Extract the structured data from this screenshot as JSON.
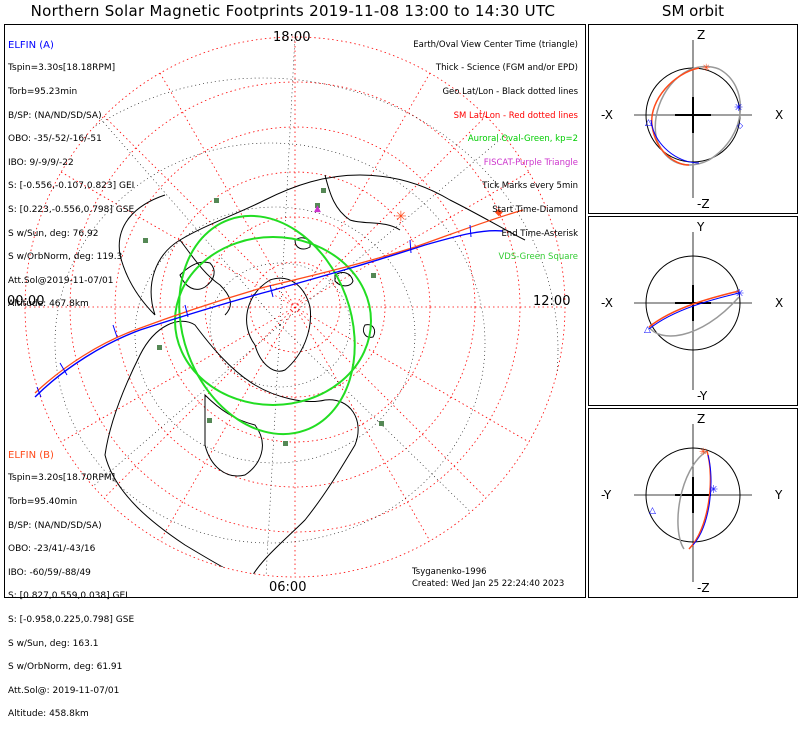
{
  "title": "Northern Solar Magnetic Footprints 2019-11-08 13:00 to 14:30 UTC",
  "side_title": "SM orbit",
  "map": {
    "mlt_labels": [
      "18:00",
      "00:00",
      "12:00",
      "06:00"
    ]
  },
  "elfin_a": {
    "header": "ELFIN (A)",
    "color": "#0000ff",
    "lines": [
      "Tspin=3.30s[18.18RPM]",
      "Torb=95.23min",
      "B/SP: (NA/ND/SD/SA)",
      "OBO: -35/-52/-16/-51",
      "IBO: 9/-9/9/-22",
      "S: [-0.556,-0.107,0.823] GEI",
      "S: [0.223,-0.556,0.798] GSE",
      "S w/Sun, deg: 76.92",
      "S w/OrbNorm, deg: 119.3",
      "Att.Sol@2019-11-07/01",
      "Altitude: 467.8km"
    ]
  },
  "elfin_b": {
    "header": "ELFIN (B)",
    "color": "#ff4a1a",
    "lines": [
      "Tspin=3.20s[18.70RPM]",
      "Torb=95.40min",
      "B/SP: (NA/ND/SD/SA)",
      "OBO: -23/41/-43/16",
      "IBO: -60/59/-88/49",
      "S: [0.827,0.559,0.038] GEI",
      "S: [-0.958,0.225,0.798] GSE",
      "S w/Sun, deg: 163.1",
      "S w/OrbNorm, deg: 61.91",
      "Att.Sol@: 2019-11-07/01",
      "Altitude: 458.8km"
    ]
  },
  "legend": [
    {
      "text": "Earth/Oval View Center Time (triangle)",
      "color": "#000000"
    },
    {
      "text": "Thick - Science (FGM and/or EPD)",
      "color": "#000000"
    },
    {
      "text": "Geo Lat/Lon - Black dotted lines",
      "color": "#000000"
    },
    {
      "text": "SM Lat/Lon - Red dotted lines",
      "color": "#ff0000"
    },
    {
      "text": "Auroral Oval-Green, kp=2",
      "color": "#00cc00"
    },
    {
      "text": "FISCAT-Purple Triangle",
      "color": "#cc33cc"
    },
    {
      "text": "Tick Marks every 5min",
      "color": "#000000"
    },
    {
      "text": "Start Time-Diamond",
      "color": "#000000"
    },
    {
      "text": "End Time-Asterisk",
      "color": "#000000"
    },
    {
      "text": "VDS-Green Square",
      "color": "#33cc33"
    }
  ],
  "credit": {
    "line1": "Tsyganenko-1996",
    "line2": "Created: Wed Jan 25 22:24:40 2023"
  },
  "panels": [
    {
      "top": "Z",
      "bottom": "-Z",
      "left": "-X",
      "right": "X"
    },
    {
      "top": "Y",
      "bottom": "-Y",
      "left": "-X",
      "right": "X"
    },
    {
      "top": "Z",
      "bottom": "-Z",
      "left": "-Y",
      "right": "Y"
    }
  ],
  "colors": {
    "elfin_a": "#0000ff",
    "elfin_b": "#ff4a1a",
    "oval": "#22dd22",
    "sm_grid": "#ff0000",
    "vds": "#558855"
  }
}
